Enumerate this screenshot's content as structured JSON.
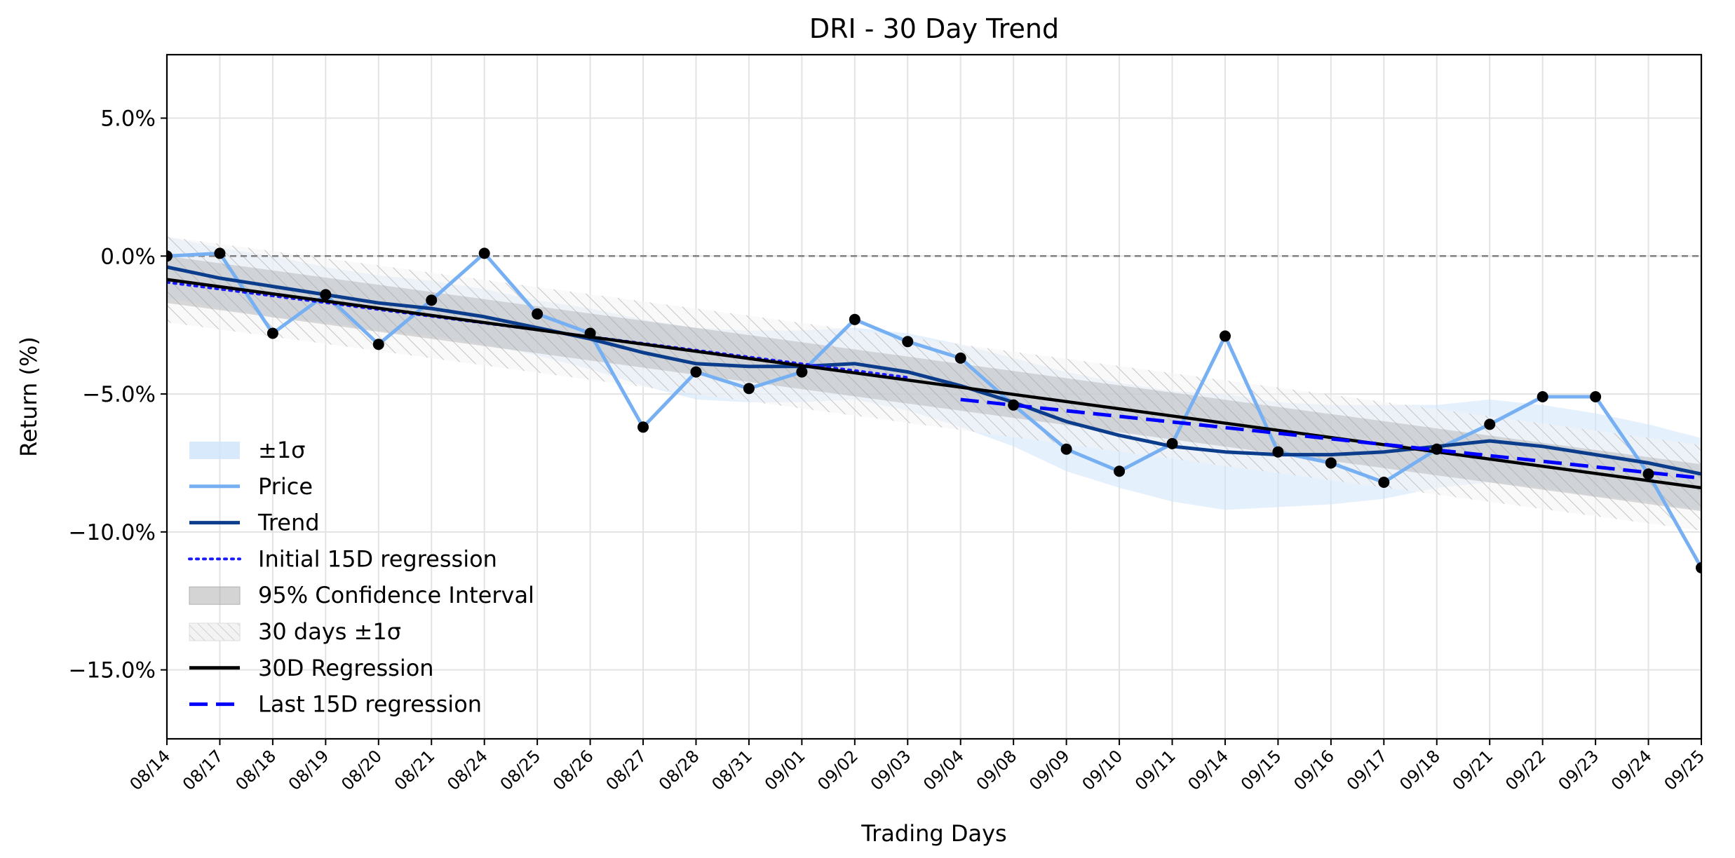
{
  "chart_data": {
    "type": "line",
    "title": "DRI - 30 Day Trend",
    "xlabel": "Trading Days",
    "ylabel": "Return (%)",
    "ylim": [
      -17.5,
      7.3
    ],
    "yticks": [
      5.0,
      0.0,
      -5.0,
      -10.0,
      -15.0
    ],
    "ytick_labels": [
      "5.0%",
      "0.0%",
      "−5.0%",
      "−10.0%",
      "−15.0%"
    ],
    "grid": true,
    "legend_position": "lower-left",
    "categories": [
      "08/14",
      "08/17",
      "08/18",
      "08/19",
      "08/20",
      "08/21",
      "08/24",
      "08/25",
      "08/26",
      "08/27",
      "08/28",
      "08/31",
      "09/01",
      "09/02",
      "09/03",
      "09/04",
      "09/08",
      "09/09",
      "09/10",
      "09/11",
      "09/14",
      "09/15",
      "09/16",
      "09/17",
      "09/18",
      "09/21",
      "09/22",
      "09/23",
      "09/24",
      "09/25"
    ],
    "price": [
      0.0,
      0.1,
      -2.8,
      -1.4,
      -3.2,
      -1.6,
      0.1,
      -2.1,
      -2.8,
      -6.2,
      -4.2,
      -4.8,
      -4.2,
      -2.3,
      -3.1,
      -3.7,
      -5.4,
      -7.0,
      -7.8,
      -6.8,
      -2.9,
      -7.1,
      -7.5,
      -8.2,
      -7.0,
      -6.1,
      -5.1,
      -5.1,
      -7.9,
      -11.3
    ],
    "trend": [
      -0.4,
      -0.8,
      -1.1,
      -1.4,
      -1.7,
      -1.9,
      -2.2,
      -2.6,
      -3.0,
      -3.5,
      -3.9,
      -4.0,
      -4.0,
      -3.9,
      -4.2,
      -4.7,
      -5.3,
      -6.0,
      -6.5,
      -6.9,
      -7.1,
      -7.2,
      -7.2,
      -7.1,
      -6.9,
      -6.7,
      -6.9,
      -7.2,
      -7.5,
      -7.9
    ],
    "sigma": [
      1.1,
      1.1,
      1.1,
      1.0,
      1.0,
      1.0,
      1.0,
      1.0,
      1.1,
      1.2,
      1.3,
      1.3,
      1.3,
      1.3,
      1.4,
      1.5,
      1.6,
      1.8,
      1.9,
      2.0,
      2.1,
      1.9,
      1.8,
      1.7,
      1.5,
      1.5,
      1.5,
      1.5,
      1.4,
      1.3
    ],
    "regression_30d": {
      "start": -0.85,
      "end": -8.4
    },
    "confidence_95": 0.85,
    "band_30d_sigma": 1.55,
    "regression_initial_15d": {
      "start_index": 0,
      "end_index": 14,
      "start": -0.95,
      "end": -4.4
    },
    "regression_last_15d": {
      "start_index": 15,
      "end_index": 29,
      "start": -5.2,
      "end": -8.05
    },
    "zero_line": 0.0,
    "colors": {
      "price": "#76b0f3",
      "trend": "#0c3d8c",
      "sigma_band": "#cfe4fb",
      "confidence": "#a0a0a0",
      "hatch": "#c4c4c4",
      "regression_30d": "#000000",
      "initial_15d": "#1a1aff",
      "last_15d": "#0000ff",
      "markers": "#000000",
      "zero_line": "#808080",
      "grid": "#e3e3e3"
    },
    "legend": [
      {
        "key": "sigma_band",
        "label": "±1σ"
      },
      {
        "key": "price",
        "label": "Price"
      },
      {
        "key": "trend",
        "label": "Trend"
      },
      {
        "key": "initial_15d",
        "label": "Initial 15D regression"
      },
      {
        "key": "confidence",
        "label": "95% Confidence Interval"
      },
      {
        "key": "hatch",
        "label": "30 days ±1σ"
      },
      {
        "key": "regression_30d",
        "label": "30D Regression"
      },
      {
        "key": "last_15d",
        "label": "Last 15D regression"
      }
    ]
  }
}
